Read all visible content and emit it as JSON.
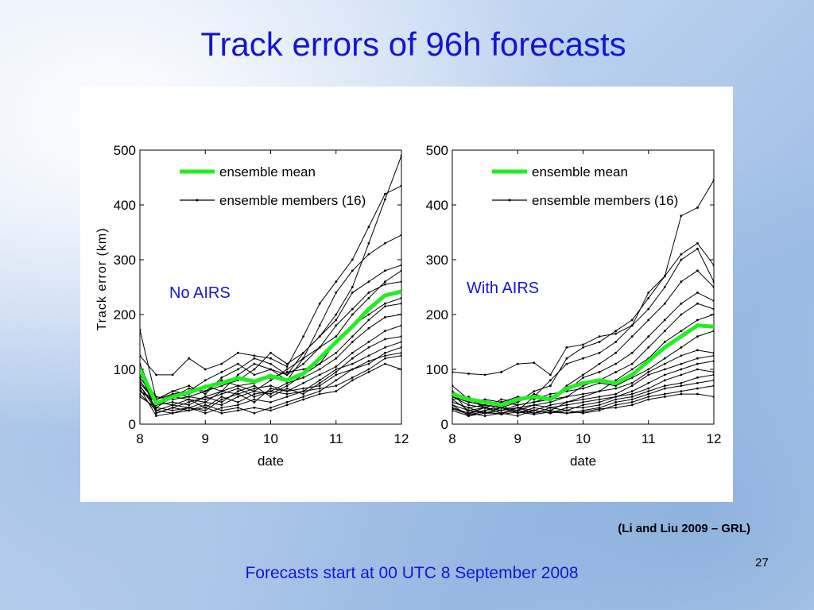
{
  "slide": {
    "title": "Track errors of 96h forecasts",
    "citation": "(Li and Liu 2009 – GRL)",
    "footer": "Forecasts start at 00 UTC 8 September 2008",
    "page_number": "27"
  },
  "chart_data": [
    {
      "type": "line",
      "panel_label": "No AIRS",
      "xlabel": "date",
      "ylabel": "Track error (km)",
      "xlim": [
        8,
        12
      ],
      "ylim": [
        0,
        500
      ],
      "xticks": [
        8,
        9,
        10,
        11,
        12
      ],
      "yticks": [
        0,
        100,
        200,
        300,
        400,
        500
      ],
      "legend": {
        "position": "top-right",
        "entries": [
          "ensemble mean",
          "ensemble members (16)"
        ]
      },
      "colors": {
        "mean": "#22ee22",
        "members": "#000000"
      },
      "x": [
        8,
        8.25,
        8.5,
        8.75,
        9,
        9.25,
        9.5,
        9.75,
        10,
        10.25,
        10.5,
        10.75,
        11,
        11.25,
        11.5,
        11.75,
        12
      ],
      "series": [
        {
          "name": "ensemble mean",
          "values": [
            100,
            38,
            50,
            58,
            68,
            75,
            84,
            78,
            88,
            80,
            92,
            120,
            150,
            178,
            210,
            235,
            242
          ]
        },
        {
          "name": "ensemble members (16)",
          "members": [
            [
              172,
              45,
              60,
              70,
              55,
              85,
              100,
              120,
              110,
              90,
              130,
              160,
              200,
              250,
              330,
              410,
              490
            ],
            [
              125,
              90,
              90,
              120,
              100,
              110,
              130,
              125,
              120,
              105,
              160,
              220,
              260,
              300,
              360,
              420,
              435
            ],
            [
              110,
              40,
              55,
              60,
              80,
              95,
              110,
              90,
              100,
              80,
              120,
              180,
              240,
              280,
              310,
              330,
              345
            ],
            [
              70,
              30,
              50,
              65,
              60,
              70,
              80,
              100,
              130,
              110,
              130,
              160,
              190,
              240,
              260,
              280,
              290
            ],
            [
              60,
              45,
              60,
              55,
              70,
              60,
              90,
              110,
              100,
              90,
              110,
              140,
              180,
              210,
              240,
              255,
              260
            ],
            [
              100,
              20,
              30,
              40,
              50,
              60,
              70,
              60,
              80,
              100,
              120,
              140,
              160,
              200,
              230,
              260,
              280
            ],
            [
              65,
              15,
              20,
              30,
              40,
              35,
              50,
              60,
              55,
              70,
              90,
              110,
              150,
              180,
              200,
              220,
              230
            ],
            [
              90,
              50,
              45,
              50,
              60,
              80,
              70,
              75,
              85,
              95,
              100,
              110,
              130,
              160,
              190,
              215,
              220
            ],
            [
              75,
              40,
              35,
              45,
              30,
              50,
              40,
              55,
              60,
              75,
              85,
              100,
              120,
              150,
              175,
              195,
              200
            ],
            [
              55,
              25,
              35,
              30,
              25,
              45,
              55,
              40,
              65,
              60,
              75,
              90,
              105,
              130,
              150,
              170,
              180
            ],
            [
              80,
              35,
              40,
              35,
              50,
              40,
              60,
              70,
              50,
              65,
              55,
              75,
              95,
              120,
              140,
              155,
              160
            ],
            [
              50,
              30,
              25,
              30,
              20,
              30,
              35,
              45,
              40,
              50,
              60,
              80,
              100,
              110,
              125,
              140,
              150
            ],
            [
              95,
              20,
              30,
              25,
              35,
              25,
              30,
              20,
              30,
              40,
              50,
              60,
              80,
              100,
              110,
              130,
              140
            ],
            [
              60,
              40,
              50,
              45,
              40,
              60,
              55,
              65,
              70,
              60,
              65,
              70,
              90,
              100,
              115,
              125,
              130
            ],
            [
              70,
              25,
              20,
              25,
              30,
              20,
              25,
              30,
              25,
              35,
              45,
              55,
              60,
              80,
              95,
              110,
              100
            ],
            [
              85,
              45,
              55,
              50,
              45,
              55,
              65,
              50,
              60,
              55,
              60,
              65,
              70,
              85,
              100,
              120,
              125
            ]
          ]
        }
      ]
    },
    {
      "type": "line",
      "panel_label": "With AIRS",
      "xlabel": "date",
      "ylabel": "",
      "xlim": [
        8,
        12
      ],
      "ylim": [
        0,
        500
      ],
      "xticks": [
        8,
        9,
        10,
        11,
        12
      ],
      "yticks": [
        0,
        100,
        200,
        300,
        400,
        500
      ],
      "legend": {
        "position": "top-right",
        "entries": [
          "ensemble mean",
          "ensemble members (16)"
        ]
      },
      "colors": {
        "mean": "#22ee22",
        "members": "#000000"
      },
      "x": [
        8,
        8.25,
        8.5,
        8.75,
        9,
        9.25,
        9.5,
        9.75,
        10,
        10.25,
        10.5,
        10.75,
        11,
        11.25,
        11.5,
        11.75,
        12
      ],
      "series": [
        {
          "name": "ensemble mean",
          "values": [
            55,
            45,
            40,
            35,
            45,
            50,
            45,
            65,
            75,
            80,
            75,
            90,
            115,
            140,
            160,
            180,
            178
          ]
        },
        {
          "name": "ensemble members (16)",
          "members": [
            [
              95,
              92,
              90,
              95,
              110,
              112,
              90,
              140,
              145,
              160,
              165,
              180,
              240,
              270,
              380,
              395,
              445
            ],
            [
              70,
              45,
              30,
              45,
              40,
              60,
              70,
              120,
              140,
              150,
              170,
              190,
              230,
              270,
              310,
              330,
              290
            ],
            [
              60,
              20,
              25,
              30,
              25,
              50,
              80,
              110,
              120,
              130,
              150,
              180,
              210,
              250,
              300,
              320,
              260
            ],
            [
              50,
              40,
              35,
              30,
              40,
              55,
              45,
              70,
              90,
              110,
              130,
              160,
              190,
              220,
              260,
              280,
              250
            ],
            [
              45,
              50,
              30,
              25,
              35,
              40,
              50,
              60,
              85,
              95,
              110,
              130,
              160,
              190,
              220,
              240,
              225
            ],
            [
              40,
              30,
              20,
              25,
              30,
              35,
              40,
              50,
              70,
              80,
              95,
              110,
              140,
              170,
              200,
              220,
              210
            ],
            [
              35,
              15,
              25,
              35,
              20,
              30,
              25,
              40,
              50,
              60,
              80,
              100,
              120,
              150,
              170,
              190,
              200
            ],
            [
              60,
              40,
              45,
              40,
              50,
              45,
              55,
              60,
              65,
              75,
              70,
              85,
              100,
              120,
              140,
              160,
              170
            ],
            [
              50,
              35,
              30,
              40,
              35,
              40,
              45,
              50,
              55,
              60,
              65,
              75,
              95,
              110,
              125,
              135,
              130
            ],
            [
              30,
              20,
              30,
              25,
              30,
              25,
              35,
              40,
              45,
              50,
              55,
              70,
              90,
              100,
              110,
              120,
              125
            ],
            [
              25,
              15,
              20,
              20,
              25,
              20,
              30,
              25,
              35,
              40,
              50,
              60,
              75,
              90,
              100,
              110,
              115
            ],
            [
              45,
              25,
              20,
              30,
              25,
              35,
              30,
              35,
              40,
              45,
              50,
              55,
              65,
              80,
              90,
              100,
              95
            ],
            [
              40,
              30,
              35,
              30,
              20,
              25,
              20,
              30,
              30,
              35,
              45,
              50,
              60,
              70,
              75,
              85,
              90
            ],
            [
              35,
              25,
              30,
              20,
              30,
              20,
              25,
              20,
              25,
              30,
              40,
              45,
              55,
              65,
              70,
              75,
              80
            ],
            [
              30,
              20,
              15,
              20,
              15,
              25,
              20,
              25,
              20,
              25,
              35,
              40,
              50,
              55,
              60,
              65,
              70
            ],
            [
              28,
              18,
              22,
              18,
              22,
              18,
              22,
              20,
              22,
              28,
              30,
              35,
              45,
              50,
              55,
              55,
              50
            ]
          ]
        }
      ]
    }
  ]
}
